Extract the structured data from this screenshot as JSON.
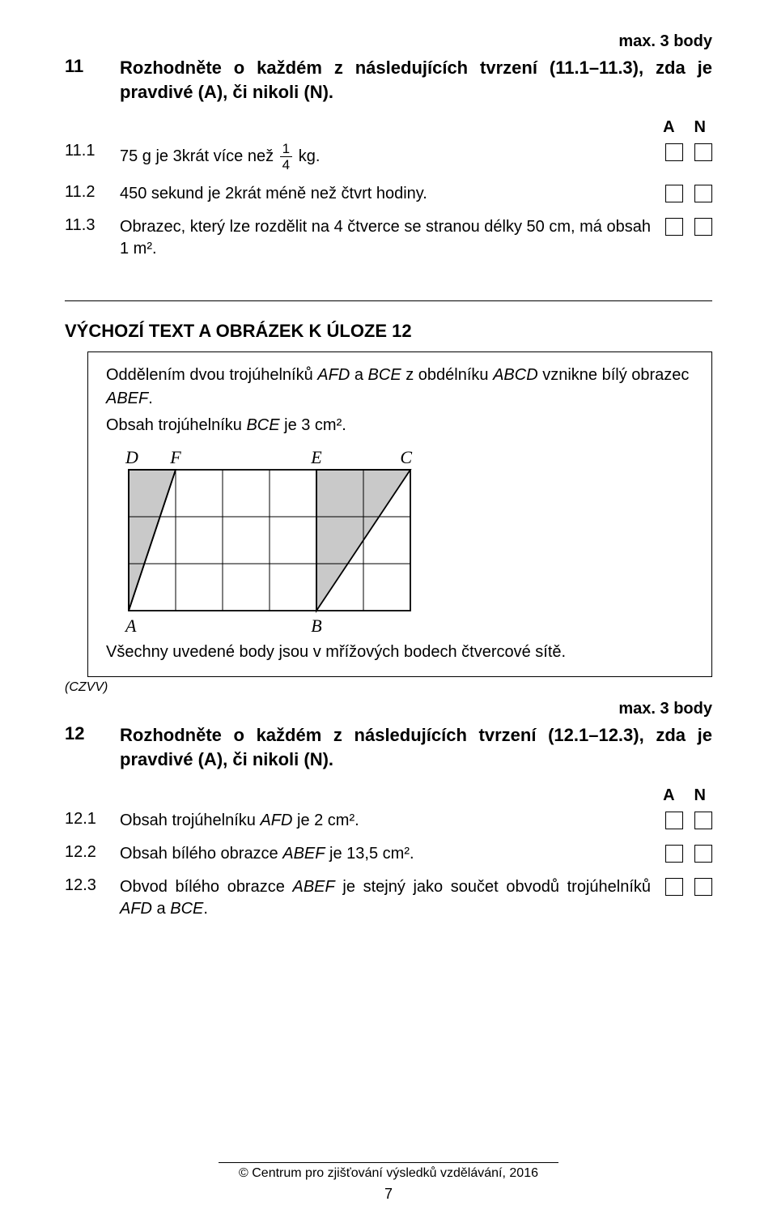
{
  "q11": {
    "score": "max. 3 body",
    "num": "11",
    "prompt": "Rozhodněte o každém z následujících tvrzení (11.1–11.3), zda je pravdivé (A), či nikoli (N).",
    "headerA": "A",
    "headerN": "N",
    "items": [
      {
        "num": "11.1",
        "pre": "75 g je 3krát více než ",
        "frac_num": "1",
        "frac_den": "4",
        "post": " kg."
      },
      {
        "num": "11.2",
        "text": "450 sekund je 2krát méně než čtvrt hodiny."
      },
      {
        "num": "11.3",
        "text": "Obrazec, který lze rozdělit na 4 čtverce se stranou délky 50 cm, má obsah 1 m²."
      }
    ]
  },
  "section12": {
    "title": "VÝCHOZÍ TEXT A OBRÁZEK K ÚLOZE 12",
    "intro1_a": "Oddělením dvou trojúhelníků ",
    "intro1_b": "AFD",
    "intro1_c": " a ",
    "intro1_d": "BCE",
    "intro1_e": " z obdélníku ",
    "intro1_f": "ABCD",
    "intro1_g": " vznikne bílý obrazec ",
    "intro1_h": "ABEF",
    "intro1_i": ".",
    "intro2_a": "Obsah trojúhelníku ",
    "intro2_b": "BCE",
    "intro2_c": " je 3 cm².",
    "labels": {
      "D": "D",
      "F": "F",
      "E": "E",
      "C": "C",
      "A": "A",
      "B": "B"
    },
    "note": "Všechny uvedené body jsou v mřížových bodech čtvercové sítě.",
    "czvv": "(CZVV)",
    "figure": {
      "cell": 58,
      "cols": 6,
      "rows": 3,
      "grid_color": "#000000",
      "grid_stroke": 1,
      "outline_stroke": 1.8,
      "tri_fill": "#c9c9c9",
      "tri_stroke": 1.8,
      "A": [
        0,
        3
      ],
      "B": [
        4,
        3
      ],
      "C": [
        6,
        0
      ],
      "D": [
        0,
        0
      ],
      "E": [
        4,
        0
      ],
      "F": [
        1,
        0
      ]
    }
  },
  "q12": {
    "score": "max. 3 body",
    "num": "12",
    "prompt": "Rozhodněte o každém z následujících tvrzení (12.1–12.3), zda je pravdivé (A), či nikoli (N).",
    "headerA": "A",
    "headerN": "N",
    "items": [
      {
        "num": "12.1",
        "pre": " Obsah trojúhelníku ",
        "i1": "AFD",
        "post": " je 2 cm²."
      },
      {
        "num": "12.2",
        "pre": "Obsah bílého obrazce ",
        "i1": "ABEF",
        "post": " je 13,5 cm²."
      },
      {
        "num": "12.3",
        "pre": "Obvod bílého obrazce ",
        "i1": "ABEF",
        "mid": " je stejný jako součet obvodů trojúhelníků ",
        "i2": "AFD",
        "mid2": " a ",
        "i3": "BCE",
        "post": "."
      }
    ]
  },
  "footer": {
    "copyright": "© Centrum pro zjišťování výsledků vzdělávání, 2016",
    "page": "7"
  }
}
